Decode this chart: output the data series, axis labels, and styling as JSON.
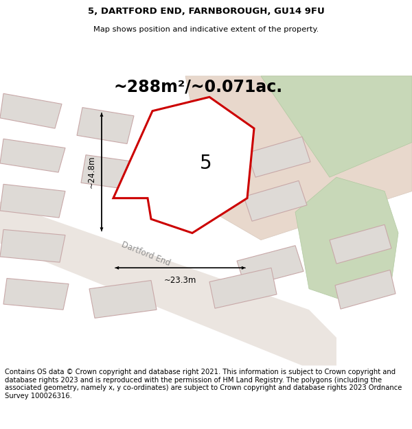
{
  "title_line1": "5, DARTFORD END, FARNBOROUGH, GU14 9FU",
  "title_line2": "Map shows position and indicative extent of the property.",
  "area_text": "~288m²/~0.071ac.",
  "label_number": "5",
  "dim_width": "~23.3m",
  "dim_height": "~24.8m",
  "road_label": "Dartford End",
  "footer_text": "Contains OS data © Crown copyright and database right 2021. This information is subject to Crown copyright and database rights 2023 and is reproduced with the permission of HM Land Registry. The polygons (including the associated geometry, namely x, y co-ordinates) are subject to Crown copyright and database rights 2023 Ordnance Survey 100026316.",
  "bg_color": "#f2eeeb",
  "title_bg": "#ffffff",
  "footer_bg": "#ffffff",
  "road_fill": "#e8e2dc",
  "building_fill": "#dedad6",
  "building_edge": "#c8a8a8",
  "green_fill": "#c8d8c0",
  "tan_fill": "#e8d8c8",
  "plot_edge": "#cc0000",
  "plot_fill": "#ffffff",
  "footer_fontsize": 7.2,
  "title1_fontsize": 9.5,
  "title2_fontsize": 8.2,
  "area_fontsize": 17,
  "label_fontsize": 20,
  "road_label_fontsize": 8.5,
  "dim_fontsize": 8.5
}
